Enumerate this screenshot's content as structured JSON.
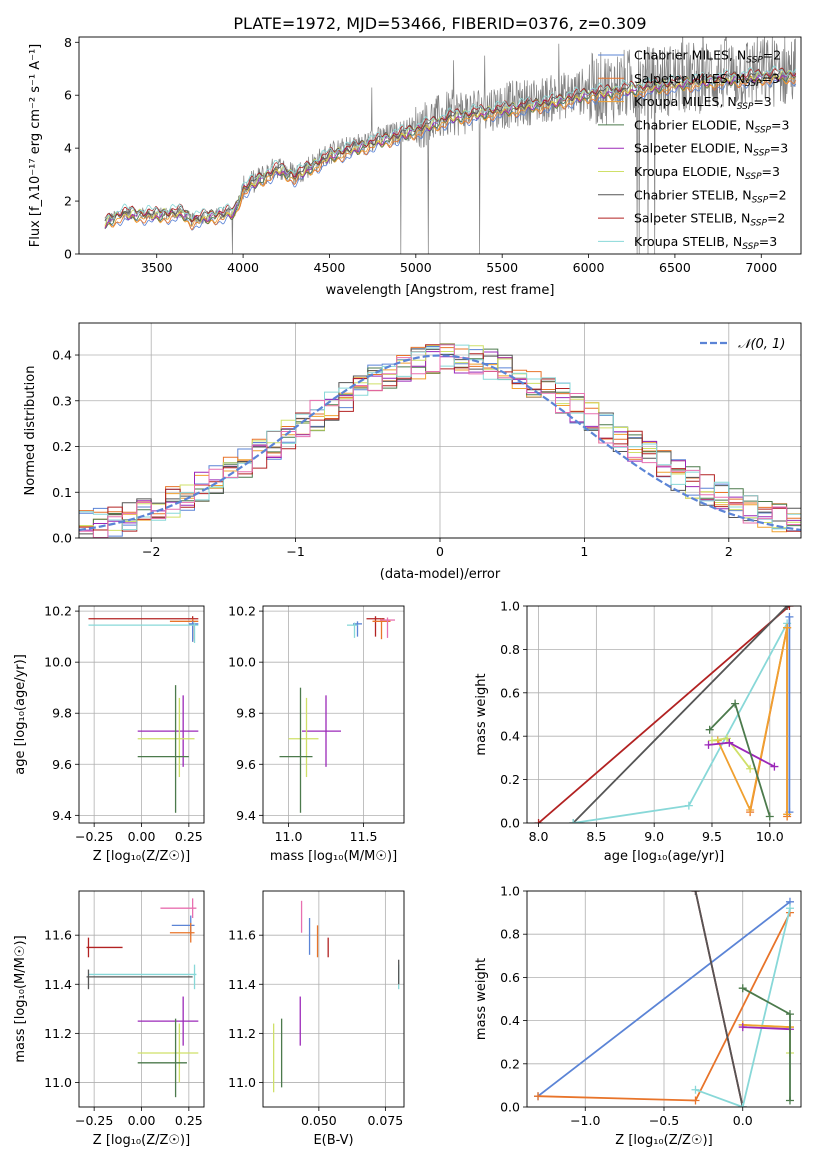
{
  "title": "PLATE=1972, MJD=53466, FIBERID=0376, z=0.309",
  "colors": {
    "chabrier_miles": "#5b84d6",
    "salpeter_miles": "#e8742a",
    "kroupa_miles": "#f0a030",
    "chabrier_elodie": "#4c7a4c",
    "salpeter_elodie": "#9b28b8",
    "kroupa_elodie": "#cfe068",
    "chabrier_stelib": "#555555",
    "salpeter_stelib": "#b22222",
    "kroupa_stelib": "#88d8d8",
    "pink": "#e870b0",
    "data": "#808080",
    "grid": "#b0b0b0"
  },
  "chart_data": [
    {
      "type": "line",
      "name": "spectrum",
      "xlabel": "wavelength [Angstrom, rest frame]",
      "ylabel": "Flux [f_λ10⁻¹⁷ erg cm⁻² s⁻¹ A⁻¹]",
      "xlim": [
        3050,
        7230
      ],
      "ylim": [
        0,
        8.2
      ],
      "xticks": [
        "3500",
        "4000",
        "4500",
        "5000",
        "5500",
        "6000",
        "6500",
        "7000"
      ],
      "yticks": [
        "0",
        "2",
        "4",
        "6",
        "8"
      ],
      "legend_position": "right",
      "legend": [
        {
          "label": "Chabrier MILES, N",
          "sub": "SSP",
          "tail": "=2",
          "color": "#5b84d6"
        },
        {
          "label": "Salpeter MILES, N",
          "sub": "SSP",
          "tail": "=3",
          "color": "#e8742a"
        },
        {
          "label": "Kroupa MILES, N",
          "sub": "SSP",
          "tail": "=3",
          "color": "#f0a030"
        },
        {
          "label": "Chabrier ELODIE, N",
          "sub": "SSP",
          "tail": "=3",
          "color": "#4c7a4c"
        },
        {
          "label": "Salpeter ELODIE, N",
          "sub": "SSP",
          "tail": "=3",
          "color": "#9b28b8"
        },
        {
          "label": "Kroupa ELODIE, N",
          "sub": "SSP",
          "tail": "=3",
          "color": "#cfe068"
        },
        {
          "label": "Chabrier STELIB, N",
          "sub": "SSP",
          "tail": "=2",
          "color": "#555555"
        },
        {
          "label": "Salpeter STELIB, N",
          "sub": "SSP",
          "tail": "=2",
          "color": "#b22222"
        },
        {
          "label": "Kroupa STELIB, N",
          "sub": "SSP",
          "tail": "=3",
          "color": "#88d8d8"
        }
      ],
      "continuum_knots": [
        [
          3200,
          1.2
        ],
        [
          3300,
          1.55
        ],
        [
          3500,
          1.5
        ],
        [
          3650,
          1.6
        ],
        [
          3700,
          1.3
        ],
        [
          3850,
          1.5
        ],
        [
          3950,
          1.6
        ],
        [
          4000,
          2.5
        ],
        [
          4200,
          3.3
        ],
        [
          4300,
          3.0
        ],
        [
          4500,
          3.8
        ],
        [
          4800,
          4.4
        ],
        [
          5000,
          4.8
        ],
        [
          5200,
          5.3
        ],
        [
          5500,
          5.6
        ],
        [
          5800,
          5.9
        ],
        [
          6000,
          6.2
        ],
        [
          6500,
          6.6
        ],
        [
          7000,
          6.9
        ],
        [
          7200,
          6.95
        ]
      ]
    },
    {
      "type": "histogram",
      "name": "residuals",
      "xlabel": "(data-model)/error",
      "ylabel": "Normed distribution",
      "xlim": [
        -2.5,
        2.5
      ],
      "ylim": [
        0,
        0.47
      ],
      "xticks": [
        "−2",
        "−1",
        "0",
        "1",
        "2"
      ],
      "yticks": [
        "0.0",
        "0.1",
        "0.2",
        "0.3",
        "0.4"
      ],
      "bin_width": 0.1,
      "legend": {
        "label": "𝒩(0, 1)",
        "color": "#5b84d6",
        "position": "top-right"
      },
      "normal": {
        "mean": 0,
        "sigma": 1
      }
    },
    {
      "type": "errorbar",
      "name": "age-vs-Z",
      "xlabel": "Z [log₁₀(Z/Z☉)]",
      "ylabel": "age  [log₁₀(age/yr)]",
      "xlim": [
        -0.33,
        0.33
      ],
      "ylim": [
        9.37,
        10.22
      ],
      "xticks": [
        "−0.25",
        "0.00",
        "0.25"
      ],
      "yticks": [
        "9.4",
        "9.6",
        "9.8",
        "10.0",
        "10.2"
      ],
      "points": [
        {
          "x": 0.27,
          "y": 10.17,
          "xerr": [
            0.55,
            0.03
          ],
          "yerr": [
            0.08,
            0.01
          ],
          "color": "#b22222"
        },
        {
          "x": 0.27,
          "y": 10.16,
          "xerr": [
            0.12,
            0.03
          ],
          "yerr": [
            0.08,
            0.01
          ],
          "color": "#e8742a"
        },
        {
          "x": 0.27,
          "y": 10.15,
          "xerr": [
            0.02,
            0.03
          ],
          "yerr": [
            0.07,
            0.01
          ],
          "color": "#5b84d6"
        },
        {
          "x": 0.28,
          "y": 10.145,
          "xerr": [
            0.56,
            0.02
          ],
          "yerr": [
            0.07,
            0.01
          ],
          "color": "#88d8d8"
        },
        {
          "x": 0.22,
          "y": 9.73,
          "xerr": [
            0.24,
            0.08
          ],
          "yerr": [
            0.14,
            0.14
          ],
          "color": "#9b28b8"
        },
        {
          "x": 0.2,
          "y": 9.7,
          "xerr": [
            0.22,
            0.08
          ],
          "yerr": [
            0.15,
            0.16
          ],
          "color": "#cfe068"
        },
        {
          "x": 0.18,
          "y": 9.63,
          "xerr": [
            0.2,
            0.07
          ],
          "yerr": [
            0.22,
            0.28
          ],
          "color": "#4c7a4c"
        }
      ]
    },
    {
      "type": "errorbar",
      "name": "age-vs-mass",
      "xlabel": "mass [log₁₀(M/M☉)]",
      "ylabel": "",
      "xlim": [
        10.83,
        11.77
      ],
      "ylim": [
        9.37,
        10.22
      ],
      "xticks": [
        "11.0",
        "11.5"
      ],
      "yticks": [
        "9.4",
        "9.6",
        "9.8",
        "10.0",
        "10.2"
      ],
      "points": [
        {
          "x": 11.58,
          "y": 10.17,
          "xerr": [
            0.06,
            0.06
          ],
          "yerr": [
            0.07,
            0.01
          ],
          "color": "#b22222"
        },
        {
          "x": 11.62,
          "y": 10.16,
          "xerr": [
            0.06,
            0.06
          ],
          "yerr": [
            0.07,
            0.01
          ],
          "color": "#e8742a"
        },
        {
          "x": 11.66,
          "y": 10.165,
          "xerr": [
            0.05,
            0.05
          ],
          "yerr": [
            0.07,
            0.01
          ],
          "color": "#e870b0"
        },
        {
          "x": 11.46,
          "y": 10.15,
          "xerr": [
            0.03,
            0.03
          ],
          "yerr": [
            0.05,
            0.01
          ],
          "color": "#5b84d6"
        },
        {
          "x": 11.44,
          "y": 10.145,
          "xerr": [
            0.05,
            0.02
          ],
          "yerr": [
            0.05,
            0.01
          ],
          "color": "#88d8d8"
        },
        {
          "x": 11.25,
          "y": 9.73,
          "xerr": [
            0.16,
            0.1
          ],
          "yerr": [
            0.14,
            0.14
          ],
          "color": "#9b28b8"
        },
        {
          "x": 11.12,
          "y": 9.7,
          "xerr": [
            0.12,
            0.08
          ],
          "yerr": [
            0.15,
            0.16
          ],
          "color": "#cfe068"
        },
        {
          "x": 11.08,
          "y": 9.63,
          "xerr": [
            0.14,
            0.08
          ],
          "yerr": [
            0.22,
            0.27
          ],
          "color": "#4c7a4c"
        }
      ]
    },
    {
      "type": "line",
      "name": "mass-weight-vs-age",
      "xlabel": "age  [log₁₀(age/yr)]",
      "ylabel": "mass weight",
      "xlim": [
        7.9,
        10.27
      ],
      "ylim": [
        0,
        1.0
      ],
      "xticks": [
        "8.0",
        "8.5",
        "9.0",
        "9.5",
        "10.0"
      ],
      "yticks": [
        "0.0",
        "0.2",
        "0.4",
        "0.6",
        "0.8",
        "1.0"
      ],
      "series": [
        {
          "color": "#b22222",
          "points": [
            [
              8.0,
              0.0
            ],
            [
              10.17,
              1.0
            ]
          ]
        },
        {
          "color": "#555555",
          "points": [
            [
              8.3,
              0.0
            ],
            [
              10.15,
              1.0
            ]
          ]
        },
        {
          "color": "#88d8d8",
          "points": [
            [
              8.3,
              0.0
            ],
            [
              9.3,
              0.08
            ],
            [
              10.15,
              0.92
            ]
          ]
        },
        {
          "color": "#5b84d6",
          "points": [
            [
              10.17,
              0.95
            ],
            [
              10.17,
              0.05
            ]
          ]
        },
        {
          "color": "#e8742a",
          "points": [
            [
              9.83,
              0.05
            ],
            [
              10.15,
              0.9
            ],
            [
              10.15,
              0.03
            ]
          ]
        },
        {
          "color": "#f0a030",
          "points": [
            [
              9.55,
              0.38
            ],
            [
              9.83,
              0.06
            ],
            [
              10.15,
              0.9
            ],
            [
              10.15,
              0.04
            ]
          ]
        },
        {
          "color": "#cfe068",
          "points": [
            [
              9.5,
              0.38
            ],
            [
              9.63,
              0.39
            ],
            [
              9.83,
              0.25
            ]
          ]
        },
        {
          "color": "#9b28b8",
          "points": [
            [
              9.47,
              0.36
            ],
            [
              9.65,
              0.37
            ],
            [
              10.04,
              0.26
            ]
          ]
        },
        {
          "color": "#4c7a4c",
          "points": [
            [
              9.48,
              0.43
            ],
            [
              9.7,
              0.55
            ],
            [
              10.0,
              0.03
            ]
          ]
        }
      ]
    },
    {
      "type": "errorbar",
      "name": "mass-vs-Z",
      "xlabel": "Z [log₁₀(Z/Z☉)]",
      "ylabel": "mass [log₁₀(M/M☉)]",
      "xlim": [
        -0.33,
        0.33
      ],
      "ylim": [
        10.9,
        11.78
      ],
      "xticks": [
        "−0.25",
        "0.00",
        "0.25"
      ],
      "yticks": [
        "11.0",
        "11.2",
        "11.4",
        "11.6"
      ],
      "points": [
        {
          "x": 0.27,
          "y": 11.71,
          "xerr": [
            0.17,
            0.02
          ],
          "yerr": [
            0.04,
            0.04
          ],
          "color": "#e870b0"
        },
        {
          "x": 0.26,
          "y": 11.64,
          "xerr": [
            0.1,
            0.02
          ],
          "yerr": [
            0.04,
            0.04
          ],
          "color": "#5b84d6"
        },
        {
          "x": 0.26,
          "y": 11.61,
          "xerr": [
            0.11,
            0.02
          ],
          "yerr": [
            0.04,
            0.04
          ],
          "color": "#e8742a"
        },
        {
          "x": -0.28,
          "y": 11.55,
          "xerr": [
            0.01,
            0.18
          ],
          "yerr": [
            0.04,
            0.04
          ],
          "color": "#b22222"
        },
        {
          "x": 0.28,
          "y": 11.44,
          "xerr": [
            0.56,
            0.01
          ],
          "yerr": [
            0.06,
            0.04
          ],
          "color": "#88d8d8"
        },
        {
          "x": -0.28,
          "y": 11.43,
          "xerr": [
            0.01,
            0.55
          ],
          "yerr": [
            0.05,
            0.03
          ],
          "color": "#555555"
        },
        {
          "x": 0.22,
          "y": 11.25,
          "xerr": [
            0.24,
            0.08
          ],
          "yerr": [
            0.1,
            0.1
          ],
          "color": "#9b28b8"
        },
        {
          "x": 0.2,
          "y": 11.12,
          "xerr": [
            0.22,
            0.1
          ],
          "yerr": [
            0.12,
            0.12
          ],
          "color": "#cfe068"
        },
        {
          "x": 0.18,
          "y": 11.08,
          "xerr": [
            0.2,
            0.06
          ],
          "yerr": [
            0.14,
            0.18
          ],
          "color": "#4c7a4c"
        }
      ]
    },
    {
      "type": "errorbar",
      "name": "mass-vs-ebv",
      "xlabel": "E(B-V)",
      "ylabel": "",
      "xlim": [
        0.029,
        0.082
      ],
      "ylim": [
        10.9,
        11.78
      ],
      "xticks": [
        "0.050",
        "0.075"
      ],
      "yticks": [
        "11.0",
        "11.2",
        "11.4",
        "11.6"
      ],
      "points": [
        {
          "x": 0.0435,
          "y": 11.67,
          "yerr": [
            0.06,
            0.07
          ],
          "color": "#e870b0"
        },
        {
          "x": 0.0465,
          "y": 11.6,
          "yerr": [
            0.08,
            0.07
          ],
          "color": "#5b84d6"
        },
        {
          "x": 0.0495,
          "y": 11.58,
          "yerr": [
            0.07,
            0.06
          ],
          "color": "#e8742a"
        },
        {
          "x": 0.0535,
          "y": 11.55,
          "yerr": [
            0.04,
            0.04
          ],
          "color": "#b22222"
        },
        {
          "x": 0.08,
          "y": 11.43,
          "yerr": [
            0.05,
            0.05
          ],
          "color": "#88d8d8"
        },
        {
          "x": 0.08,
          "y": 11.45,
          "yerr": [
            0.05,
            0.05
          ],
          "color": "#555555"
        },
        {
          "x": 0.043,
          "y": 11.25,
          "yerr": [
            0.1,
            0.1
          ],
          "color": "#9b28b8"
        },
        {
          "x": 0.036,
          "y": 11.12,
          "yerr": [
            0.14,
            0.14
          ],
          "color": "#4c7a4c"
        },
        {
          "x": 0.033,
          "y": 11.08,
          "yerr": [
            0.12,
            0.16
          ],
          "color": "#cfe068"
        }
      ]
    },
    {
      "type": "line",
      "name": "mass-weight-vs-Z",
      "xlabel": "Z [log₁₀(Z/Z☉)]",
      "ylabel": "mass weight",
      "xlim": [
        -1.37,
        0.37
      ],
      "ylim": [
        0,
        1.0
      ],
      "xticks": [
        "−1.0",
        "−0.5",
        "0.0"
      ],
      "yticks": [
        "0.0",
        "0.2",
        "0.4",
        "0.6",
        "0.8",
        "1.0"
      ],
      "series": [
        {
          "color": "#5b84d6",
          "points": [
            [
              -1.3,
              0.05
            ],
            [
              0.3,
              0.95
            ]
          ]
        },
        {
          "color": "#e8742a",
          "points": [
            [
              -1.3,
              0.05
            ],
            [
              -0.3,
              0.03
            ],
            [
              0.3,
              0.9
            ]
          ]
        },
        {
          "color": "#b22222",
          "points": [
            [
              -0.3,
              1.0
            ],
            [
              0.0,
              0.0
            ]
          ]
        },
        {
          "color": "#555555",
          "points": [
            [
              -0.3,
              1.0
            ],
            [
              0.0,
              0.0
            ]
          ]
        },
        {
          "color": "#88d8d8",
          "points": [
            [
              -0.3,
              0.08
            ],
            [
              0.0,
              0.0
            ],
            [
              0.3,
              0.92
            ]
          ]
        },
        {
          "color": "#cfe068",
          "points": [
            [
              0.0,
              0.38
            ],
            [
              0.3,
              0.37
            ],
            [
              0.3,
              0.25
            ]
          ]
        },
        {
          "color": "#f0a030",
          "points": [
            [
              0.0,
              0.38
            ],
            [
              0.3,
              0.37
            ]
          ]
        },
        {
          "color": "#9b28b8",
          "points": [
            [
              0.0,
              0.37
            ],
            [
              0.3,
              0.36
            ]
          ]
        },
        {
          "color": "#4c7a4c",
          "points": [
            [
              0.0,
              0.55
            ],
            [
              0.3,
              0.43
            ],
            [
              0.3,
              0.03
            ]
          ]
        }
      ]
    }
  ]
}
